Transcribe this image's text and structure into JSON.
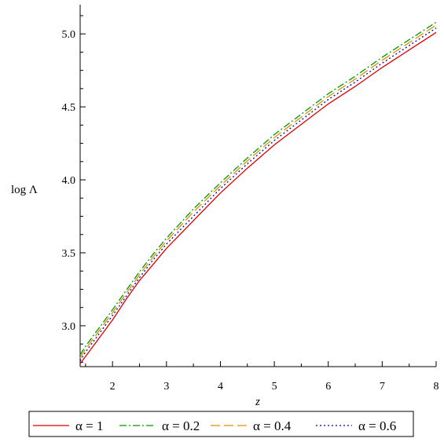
{
  "chart_data": {
    "type": "line",
    "title": "",
    "xlabel": "z",
    "ylabel": "log Λ",
    "xlim": [
      1.4,
      8.0
    ],
    "ylim": [
      2.72,
      5.2
    ],
    "x_ticks": [
      2,
      3,
      4,
      5,
      6,
      7,
      8
    ],
    "x_tick_labels": [
      "2",
      "3",
      "4",
      "5",
      "6",
      "7",
      "8"
    ],
    "y_ticks": [
      3.0,
      3.5,
      4.0,
      4.5,
      5.0
    ],
    "y_tick_labels": [
      "3.0",
      "3.5",
      "4.0",
      "4.5",
      "5.0"
    ],
    "grid": false,
    "legend_position": "bottom",
    "x": [
      1.4,
      1.5,
      1.6,
      1.8,
      2.0,
      2.25,
      2.5,
      2.75,
      3.0,
      3.5,
      4.0,
      4.5,
      5.0,
      5.5,
      6.0,
      6.5,
      7.0,
      7.5,
      8.0
    ],
    "series": [
      {
        "name": "α = 1",
        "color": "#dd0000",
        "dash": "solid",
        "values": [
          2.74,
          2.79,
          2.84,
          2.94,
          3.04,
          3.18,
          3.31,
          3.42,
          3.53,
          3.72,
          3.91,
          4.08,
          4.24,
          4.38,
          4.52,
          4.64,
          4.77,
          4.89,
          5.01
        ]
      },
      {
        "name": "α = 0.2",
        "color": "#009900",
        "dash": "dashdot",
        "values": [
          2.8,
          2.86,
          2.91,
          3.01,
          3.11,
          3.24,
          3.37,
          3.49,
          3.6,
          3.8,
          3.98,
          4.15,
          4.31,
          4.45,
          4.59,
          4.71,
          4.84,
          4.96,
          5.08
        ]
      },
      {
        "name": "α = 0.4",
        "color": "#e09000",
        "dash": "longdash",
        "values": [
          2.78,
          2.84,
          2.89,
          2.99,
          3.09,
          3.22,
          3.35,
          3.47,
          3.58,
          3.78,
          3.96,
          4.13,
          4.29,
          4.43,
          4.57,
          4.69,
          4.82,
          4.94,
          5.06
        ]
      },
      {
        "name": "α = 0.6",
        "color": "#0000cc",
        "dash": "dot",
        "values": [
          2.76,
          2.82,
          2.87,
          2.97,
          3.07,
          3.2,
          3.33,
          3.45,
          3.56,
          3.75,
          3.94,
          4.11,
          4.27,
          4.41,
          4.55,
          4.67,
          4.8,
          4.92,
          5.04
        ]
      }
    ]
  }
}
